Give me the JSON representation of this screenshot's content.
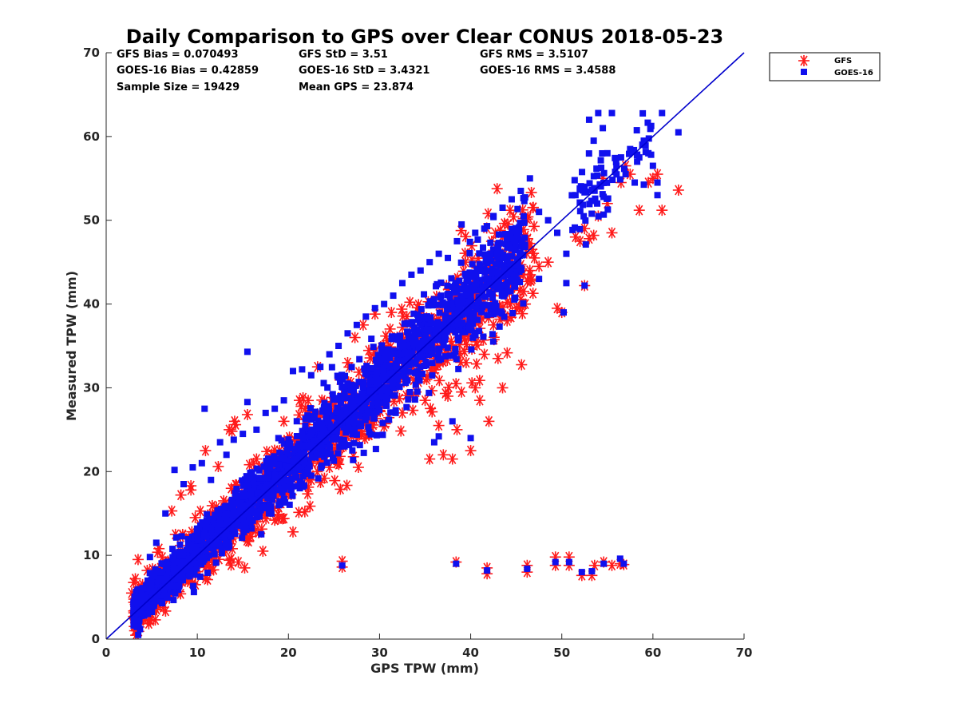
{
  "chart_data": {
    "type": "scatter",
    "title": "Daily Comparison to GPS over Clear CONUS 2018-05-23",
    "xlabel": "GPS TPW (mm)",
    "ylabel": "Measured TPW (mm)",
    "xlim": [
      0,
      70
    ],
    "ylim": [
      0,
      70
    ],
    "xticks": [
      "0",
      "10",
      "20",
      "30",
      "40",
      "50",
      "60",
      "70"
    ],
    "yticks": [
      "0",
      "10",
      "20",
      "30",
      "40",
      "50",
      "60",
      "70"
    ],
    "grid": false,
    "legend_position": "outside-top-right",
    "reference_line": {
      "name": "1:1 line",
      "x": [
        0,
        70
      ],
      "y": [
        0,
        70
      ],
      "color": "#0000cc"
    },
    "stats": [
      "GFS Bias = 0.070493",
      "GFS StD = 3.51",
      "GFS RMS = 3.5107",
      "GOES-16 Bias = 0.42859",
      "GOES-16 StD = 3.4321",
      "GOES-16 RMS = 3.4588",
      "Sample Size = 19429",
      "Mean GPS = 23.874"
    ],
    "series": [
      {
        "name": "GFS",
        "marker": "asterisk",
        "color": "#ff1a1a",
        "points": [
          [
            2.8,
            5.5
          ],
          [
            3.2,
            7.2
          ],
          [
            3.5,
            9.5
          ],
          [
            4.0,
            6.5
          ],
          [
            4.5,
            8.2
          ],
          [
            5.2,
            4.8
          ],
          [
            5.8,
            10.8
          ],
          [
            6.5,
            6.8
          ],
          [
            7.2,
            15.3
          ],
          [
            7.6,
            12.5
          ],
          [
            8.2,
            17.2
          ],
          [
            8.8,
            7.2
          ],
          [
            9.3,
            18.3
          ],
          [
            9.8,
            6.5
          ],
          [
            10.5,
            10.2
          ],
          [
            10.9,
            22.5
          ],
          [
            11.6,
            9.8
          ],
          [
            12.3,
            20.6
          ],
          [
            12.9,
            16.5
          ],
          [
            13.5,
            25.0
          ],
          [
            14.1,
            26.0
          ],
          [
            14.5,
            9.2
          ],
          [
            15.2,
            8.5
          ],
          [
            15.5,
            26.8
          ],
          [
            16.5,
            21.5
          ],
          [
            17.2,
            10.5
          ],
          [
            18.5,
            14.2
          ],
          [
            19.5,
            26.0
          ],
          [
            20.5,
            12.8
          ],
          [
            21.2,
            28.5
          ],
          [
            21.8,
            15.2
          ],
          [
            22.5,
            19.0
          ],
          [
            23.2,
            32.5
          ],
          [
            24.5,
            20.5
          ],
          [
            25.5,
            21.5
          ],
          [
            26.5,
            33.0
          ],
          [
            27.3,
            36.0
          ],
          [
            28.2,
            37.5
          ],
          [
            28.8,
            24.5
          ],
          [
            29.5,
            38.8
          ],
          [
            30.5,
            29.0
          ],
          [
            31.3,
            39.0
          ],
          [
            32.5,
            27.0
          ],
          [
            33.0,
            38.5
          ],
          [
            34.0,
            29.5
          ],
          [
            34.5,
            32.5
          ],
          [
            35.0,
            28.5
          ],
          [
            35.5,
            21.5
          ],
          [
            36.0,
            33.5
          ],
          [
            36.5,
            25.5
          ],
          [
            37.0,
            22.0
          ],
          [
            37.5,
            29.0
          ],
          [
            38.0,
            21.5
          ],
          [
            38.5,
            25.0
          ],
          [
            39.0,
            29.5
          ],
          [
            39.5,
            33.0
          ],
          [
            40.0,
            22.5
          ],
          [
            40.5,
            30.0
          ],
          [
            41.0,
            28.5
          ],
          [
            41.5,
            34.0
          ],
          [
            42.0,
            26.0
          ],
          [
            42.5,
            37.5
          ],
          [
            43.0,
            33.5
          ],
          [
            43.5,
            30.0
          ],
          [
            44.0,
            38.0
          ],
          [
            44.5,
            42.0
          ],
          [
            45.0,
            39.5
          ],
          [
            45.5,
            43.5
          ],
          [
            46.0,
            40.0
          ],
          [
            46.5,
            44.0
          ],
          [
            47.0,
            45.5
          ],
          [
            47.5,
            44.5
          ],
          [
            48.5,
            45.0
          ],
          [
            49.5,
            39.5
          ],
          [
            50.0,
            39.0
          ],
          [
            51.5,
            48.0
          ],
          [
            52.0,
            47.5
          ],
          [
            52.5,
            49.0
          ],
          [
            53.0,
            47.8
          ],
          [
            53.5,
            48.2
          ],
          [
            54.0,
            50.5
          ],
          [
            54.5,
            55.0
          ],
          [
            55.0,
            52.0
          ],
          [
            55.5,
            48.5
          ],
          [
            56.5,
            54.5
          ],
          [
            57.0,
            56.5
          ],
          [
            57.5,
            55.5
          ],
          [
            58.5,
            51.2
          ],
          [
            59.5,
            54.5
          ],
          [
            60.0,
            55.0
          ],
          [
            60.5,
            55.5
          ],
          [
            61.0,
            51.2
          ],
          [
            62.8,
            53.6
          ],
          [
            52.5,
            42.2
          ],
          [
            25.9,
            9.3
          ],
          [
            25.9,
            8.6
          ],
          [
            38.4,
            9.2
          ],
          [
            41.8,
            7.8
          ],
          [
            41.8,
            8.5
          ],
          [
            46.2,
            8.0
          ],
          [
            46.2,
            8.8
          ],
          [
            49.3,
            9.8
          ],
          [
            49.3,
            8.8
          ],
          [
            50.8,
            9.8
          ],
          [
            50.8,
            8.8
          ],
          [
            52.2,
            7.6
          ],
          [
            53.3,
            7.6
          ],
          [
            53.6,
            8.8
          ],
          [
            54.6,
            9.2
          ],
          [
            55.5,
            8.8
          ],
          [
            56.4,
            9.0
          ],
          [
            56.8,
            8.9
          ],
          [
            14.2,
            25.6
          ],
          [
            13.8,
            24.8
          ],
          [
            9.3,
            17.8
          ],
          [
            21.6,
            28.8
          ],
          [
            21.4,
            27.8
          ]
        ]
      },
      {
        "name": "GOES-16",
        "marker": "square",
        "color": "#1010ee",
        "points": [
          [
            3.0,
            4.2
          ],
          [
            3.5,
            3.5
          ],
          [
            4.2,
            4.5
          ],
          [
            4.8,
            9.8
          ],
          [
            5.5,
            11.5
          ],
          [
            6.5,
            15.0
          ],
          [
            7.5,
            20.2
          ],
          [
            8.5,
            18.5
          ],
          [
            9.5,
            20.5
          ],
          [
            10.5,
            21.0
          ],
          [
            10.8,
            27.5
          ],
          [
            11.5,
            19.0
          ],
          [
            12.5,
            23.5
          ],
          [
            13.2,
            22.0
          ],
          [
            14.0,
            23.8
          ],
          [
            15.0,
            24.5
          ],
          [
            15.5,
            34.3
          ],
          [
            15.5,
            28.3
          ],
          [
            16.5,
            25.0
          ],
          [
            17.5,
            27.0
          ],
          [
            18.5,
            27.5
          ],
          [
            19.5,
            28.5
          ],
          [
            20.5,
            32.0
          ],
          [
            21.5,
            32.2
          ],
          [
            22.5,
            31.5
          ],
          [
            23.5,
            32.5
          ],
          [
            24.5,
            34.0
          ],
          [
            25.5,
            35.0
          ],
          [
            26.5,
            36.5
          ],
          [
            27.5,
            37.5
          ],
          [
            28.5,
            38.5
          ],
          [
            29.5,
            39.5
          ],
          [
            30.5,
            40.0
          ],
          [
            31.5,
            41.0
          ],
          [
            32.5,
            42.5
          ],
          [
            33.5,
            43.5
          ],
          [
            34.5,
            44.0
          ],
          [
            35.5,
            45.0
          ],
          [
            36.5,
            46.0
          ],
          [
            37.5,
            45.5
          ],
          [
            38.5,
            47.5
          ],
          [
            39.0,
            49.5
          ],
          [
            40.5,
            48.5
          ],
          [
            41.5,
            49.0
          ],
          [
            42.5,
            50.5
          ],
          [
            43.5,
            51.5
          ],
          [
            44.5,
            52.5
          ],
          [
            45.5,
            53.5
          ],
          [
            46.5,
            55.0
          ],
          [
            47.5,
            51.0
          ],
          [
            48.5,
            50.0
          ],
          [
            49.5,
            48.5
          ],
          [
            50.5,
            46.0
          ],
          [
            51.5,
            53.0
          ],
          [
            52.5,
            54.0
          ],
          [
            53.0,
            62.0
          ],
          [
            53.5,
            59.5
          ],
          [
            54.0,
            62.8
          ],
          [
            54.5,
            61.0
          ],
          [
            55.0,
            58.0
          ],
          [
            55.5,
            62.8
          ],
          [
            56.0,
            56.5
          ],
          [
            56.5,
            57.5
          ],
          [
            57.0,
            55.5
          ],
          [
            57.5,
            58.5
          ],
          [
            58.0,
            54.5
          ],
          [
            58.5,
            57.5
          ],
          [
            59.0,
            59.5
          ],
          [
            59.5,
            58.0
          ],
          [
            60.0,
            56.5
          ],
          [
            60.5,
            53.0
          ],
          [
            61.0,
            62.8
          ],
          [
            62.8,
            60.5
          ],
          [
            60.5,
            54.5
          ],
          [
            36.0,
            23.5
          ],
          [
            38.0,
            26.0
          ],
          [
            40.0,
            24.0
          ],
          [
            36.5,
            24.2
          ],
          [
            50.5,
            42.5
          ],
          [
            52.5,
            42.2
          ],
          [
            50.2,
            39.0
          ],
          [
            47.5,
            43.0
          ],
          [
            25.9,
            8.8
          ],
          [
            38.4,
            9.0
          ],
          [
            41.8,
            8.2
          ],
          [
            46.2,
            8.4
          ],
          [
            49.3,
            9.2
          ],
          [
            50.8,
            9.2
          ],
          [
            52.2,
            8.0
          ],
          [
            53.3,
            8.1
          ],
          [
            54.6,
            9.0
          ],
          [
            56.4,
            9.6
          ],
          [
            56.8,
            9.0
          ]
        ]
      }
    ]
  }
}
